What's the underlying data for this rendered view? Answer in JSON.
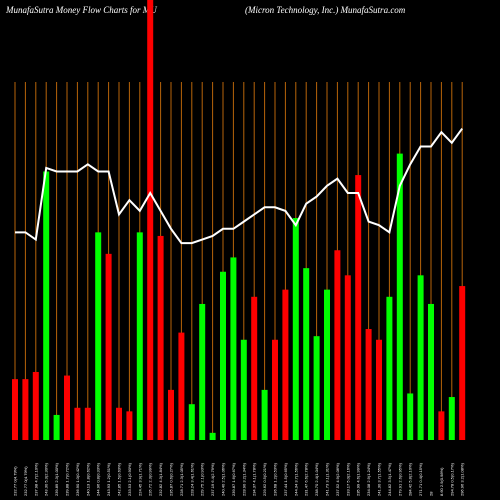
{
  "chart_data": {
    "type": "bar",
    "title_left": "MunafaSutra  Money  Flow  Charts for MU",
    "title_right": "(Micron  Technology,  Inc.) MunafaSutra.com",
    "colors": {
      "background": "#000000",
      "up": "#00ff00",
      "down": "#ff0000",
      "gridline": "#b8650a",
      "line": "#ffffff"
    },
    "ylim": [
      0,
      100
    ],
    "categories": [
      "232.77 0(4.79%)",
      "232.77 0(4.79%)",
      "237.98 4.7(2.10%)",
      "243.30 5.3(2.30%)",
      "239.89 2.3(1.00%)",
      "239.88 1.7(0.72%)",
      "236.90 1.0(0.42%)",
      "240.13 1.8(0.62%)",
      "244.96 0.8(0.33%)",
      "243.93 1.2(0.51%)",
      "242.85 1.5(0.63%)",
      "233.53 2.1(0.90%)",
      "224.45 3.9(1.71%)",
      "226.72 2.3(0.99%)",
      "232.82 4.3(1.84%)",
      "235.87 0.6(0.27%)",
      "228.71 2.3(1.05%)",
      "228.24 3.4(1.61%)",
      "229.75 2.1(0.93%)",
      "237.19 6.4(2.79%)",
      "240.40 2.5(1.06%)",
      "239.87 1.6(0.67%)",
      "228.90 3.2(1.34%)",
      "234.37 4.1(1.78%)",
      "229.62 0.5(0.21%)",
      "236.68 1.2(0.53%)",
      "237.44 1.5(0.65%)",
      "244.34 3.7(1.56%)",
      "231.47 6.6(2.78%)",
      "238.70 2.4(1.04%)",
      "241.73 3.1(1.31%)",
      "237.52 4.9(2.06%)",
      "233.17 5.0(2.16%)",
      "235.99 4.6(1.99%)",
      "234.08 2.9(1.24%)",
      "241.30 3.7(1.55%)",
      "244.82 3.5(1.47%)",
      "279.91 2.6(0.95%)",
      "284.42 5.8(2.10%)",
      "271.71 0.4(0.15%)",
      "28",
      "8.60 2.9(0.98%)",
      "294.78 0.5(0.17%)",
      "296.96 3.2(1.08%)"
    ],
    "series": [
      {
        "direction": [
          "down",
          "down",
          "down",
          "up",
          "up",
          "down",
          "down",
          "down",
          "up",
          "down",
          "down",
          "down",
          "up",
          "down",
          "down",
          "down",
          "down",
          "up",
          "up",
          "up",
          "up",
          "up",
          "up",
          "down",
          "up",
          "down",
          "down",
          "up",
          "up",
          "up",
          "up",
          "down",
          "down",
          "down",
          "down",
          "down",
          "up",
          "up",
          "up",
          "up",
          "up",
          "down",
          "up",
          "down"
        ],
        "values": [
          17,
          17,
          19,
          75,
          7,
          18,
          9,
          9,
          58,
          52,
          9,
          8,
          58,
          90,
          57,
          14,
          30,
          10,
          38,
          2,
          47,
          51,
          28,
          40,
          14,
          28,
          42,
          62,
          48,
          29,
          42,
          53,
          46,
          74,
          31,
          28,
          40,
          80,
          13,
          46,
          38,
          8,
          12,
          43
        ]
      },
      {
        "type": "line",
        "values": [
          58,
          58,
          56,
          76,
          75,
          75,
          75,
          77,
          75,
          75,
          63,
          67,
          64,
          69,
          64,
          59,
          55,
          55,
          56,
          57,
          59,
          59,
          61,
          63,
          65,
          65,
          64,
          60,
          66,
          68,
          71,
          73,
          69,
          69,
          61,
          60,
          58,
          71,
          77,
          82,
          82,
          86,
          83,
          87
        ]
      }
    ]
  }
}
